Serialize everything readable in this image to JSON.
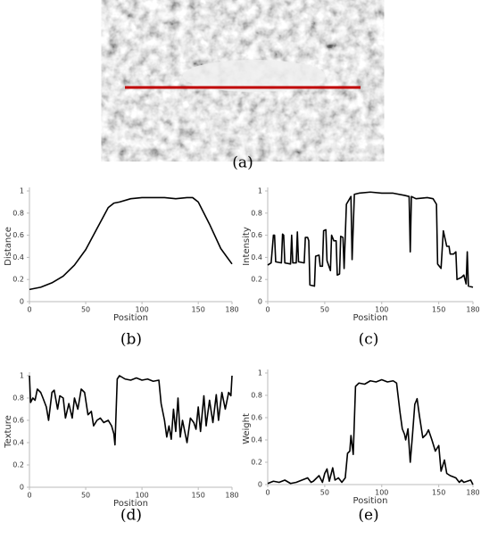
{
  "image": {
    "caption": "(a)"
  },
  "chart_data": [
    {
      "type": "line",
      "caption": "(b)",
      "xlabel": "Position",
      "ylabel": "Distance",
      "color": "#000000",
      "xlim": [
        0,
        180
      ],
      "ylim": [
        0,
        1
      ],
      "xticks": [
        0,
        50,
        100,
        150,
        180
      ],
      "yticks": [
        0,
        0.2,
        0.4,
        0.6,
        0.8,
        1
      ],
      "x": [
        0,
        10,
        20,
        30,
        40,
        50,
        60,
        70,
        75,
        80,
        90,
        100,
        110,
        120,
        130,
        140,
        145,
        150,
        160,
        170,
        180
      ],
      "values": [
        0.11,
        0.13,
        0.17,
        0.23,
        0.33,
        0.47,
        0.66,
        0.85,
        0.89,
        0.9,
        0.93,
        0.94,
        0.94,
        0.94,
        0.93,
        0.94,
        0.94,
        0.9,
        0.7,
        0.48,
        0.34
      ]
    },
    {
      "type": "line",
      "caption": "(c)",
      "xlabel": "Position",
      "ylabel": "Intensity",
      "color": "#000000",
      "xlim": [
        0,
        180
      ],
      "ylim": [
        0,
        1
      ],
      "xticks": [
        0,
        50,
        100,
        150,
        180
      ],
      "yticks": [
        0,
        0.2,
        0.4,
        0.6,
        0.8,
        1
      ],
      "x": [
        0,
        3,
        5,
        6,
        7,
        12,
        13,
        14,
        15,
        20,
        21,
        22,
        25,
        26,
        27,
        32,
        33,
        35,
        36,
        37,
        41,
        42,
        45,
        46,
        48,
        49,
        51,
        52,
        55,
        56,
        58,
        60,
        61,
        63,
        64,
        66,
        67,
        69,
        73,
        74,
        76,
        80,
        90,
        100,
        110,
        120,
        124,
        125,
        126,
        130,
        140,
        145,
        148,
        149,
        152,
        154,
        157,
        159,
        160,
        163,
        165,
        166,
        170,
        172,
        174,
        175,
        176,
        180
      ],
      "values": [
        0.33,
        0.35,
        0.6,
        0.6,
        0.36,
        0.35,
        0.61,
        0.6,
        0.35,
        0.34,
        0.6,
        0.35,
        0.35,
        0.63,
        0.36,
        0.35,
        0.58,
        0.58,
        0.55,
        0.15,
        0.14,
        0.41,
        0.42,
        0.32,
        0.32,
        0.64,
        0.65,
        0.37,
        0.28,
        0.6,
        0.55,
        0.55,
        0.24,
        0.25,
        0.59,
        0.58,
        0.3,
        0.88,
        0.95,
        0.38,
        0.97,
        0.98,
        0.99,
        0.98,
        0.98,
        0.96,
        0.95,
        0.45,
        0.95,
        0.93,
        0.94,
        0.93,
        0.88,
        0.34,
        0.3,
        0.64,
        0.5,
        0.5,
        0.43,
        0.43,
        0.45,
        0.2,
        0.22,
        0.24,
        0.16,
        0.45,
        0.14,
        0.13
      ]
    },
    {
      "type": "line",
      "caption": "(d)",
      "xlabel": "Position",
      "ylabel": "Texture",
      "color": "#000000",
      "xlim": [
        0,
        180
      ],
      "ylim": [
        0,
        1
      ],
      "xticks": [
        0,
        50,
        100,
        150,
        180
      ],
      "yticks": [
        0,
        0.2,
        0.4,
        0.6,
        0.8,
        1
      ],
      "x": [
        0,
        1,
        3,
        5,
        7,
        10,
        12,
        15,
        17,
        20,
        22,
        25,
        27,
        30,
        32,
        35,
        38,
        40,
        43,
        46,
        49,
        52,
        55,
        57,
        60,
        63,
        66,
        70,
        73,
        75,
        76,
        78,
        80,
        85,
        90,
        95,
        100,
        105,
        110,
        115,
        117,
        120,
        122,
        124,
        126,
        128,
        130,
        132,
        134,
        136,
        138,
        140,
        143,
        146,
        148,
        150,
        152,
        155,
        157,
        160,
        163,
        166,
        168,
        171,
        174,
        177,
        179,
        180
      ],
      "values": [
        1,
        0.76,
        0.8,
        0.78,
        0.88,
        0.85,
        0.8,
        0.72,
        0.6,
        0.85,
        0.87,
        0.7,
        0.82,
        0.8,
        0.62,
        0.75,
        0.62,
        0.8,
        0.7,
        0.88,
        0.85,
        0.65,
        0.68,
        0.55,
        0.6,
        0.62,
        0.58,
        0.6,
        0.55,
        0.48,
        0.38,
        0.97,
        1,
        0.97,
        0.96,
        0.98,
        0.96,
        0.97,
        0.95,
        0.96,
        0.75,
        0.6,
        0.45,
        0.55,
        0.43,
        0.7,
        0.5,
        0.8,
        0.45,
        0.6,
        0.5,
        0.4,
        0.62,
        0.58,
        0.52,
        0.72,
        0.5,
        0.82,
        0.55,
        0.78,
        0.58,
        0.83,
        0.6,
        0.85,
        0.7,
        0.85,
        0.82,
        1
      ]
    },
    {
      "type": "line",
      "caption": "(e)",
      "xlabel": "Position",
      "ylabel": "Weight",
      "color": "#000000",
      "xlim": [
        0,
        180
      ],
      "ylim": [
        0,
        1
      ],
      "xticks": [
        0,
        50,
        100,
        150,
        180
      ],
      "yticks": [
        0,
        0.2,
        0.4,
        0.6,
        0.8,
        1
      ],
      "x": [
        0,
        5,
        10,
        15,
        20,
        25,
        30,
        35,
        38,
        40,
        45,
        48,
        50,
        52,
        54,
        57,
        59,
        62,
        65,
        68,
        70,
        72,
        73,
        75,
        77,
        80,
        85,
        90,
        95,
        100,
        105,
        110,
        113,
        116,
        118,
        120,
        121,
        123,
        125,
        127,
        129,
        131,
        133,
        136,
        139,
        141,
        144,
        147,
        150,
        152,
        155,
        157,
        160,
        165,
        168,
        170,
        172,
        175,
        178,
        180
      ],
      "values": [
        0.01,
        0.03,
        0.02,
        0.04,
        0.01,
        0.02,
        0.04,
        0.06,
        0.02,
        0.03,
        0.08,
        0.02,
        0.1,
        0.14,
        0.03,
        0.15,
        0.04,
        0.06,
        0.02,
        0.06,
        0.28,
        0.3,
        0.44,
        0.27,
        0.88,
        0.91,
        0.9,
        0.93,
        0.92,
        0.94,
        0.92,
        0.93,
        0.91,
        0.65,
        0.5,
        0.45,
        0.4,
        0.5,
        0.2,
        0.45,
        0.72,
        0.77,
        0.62,
        0.42,
        0.45,
        0.49,
        0.4,
        0.3,
        0.35,
        0.12,
        0.22,
        0.1,
        0.08,
        0.06,
        0.02,
        0.04,
        0.02,
        0.03,
        0.04,
        0
      ]
    }
  ]
}
